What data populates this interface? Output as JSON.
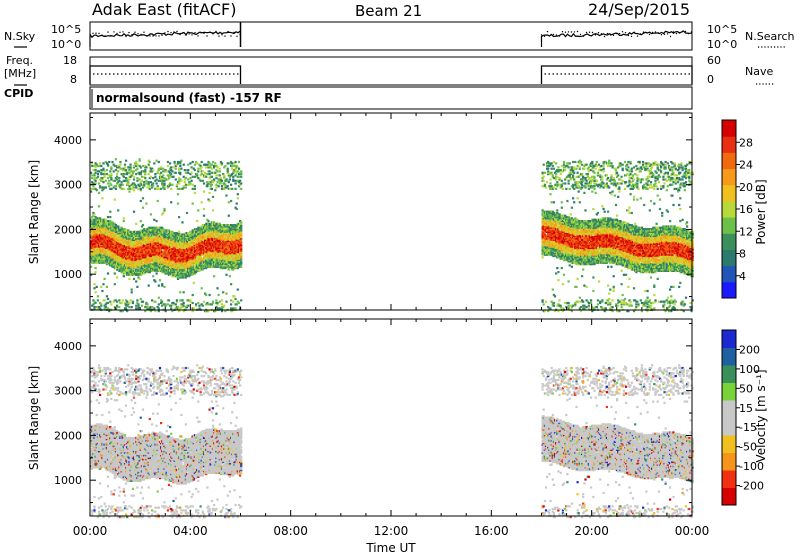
{
  "header": {
    "radar": "Adak East (fitACF)",
    "beam": "Beam 21",
    "date": "24/Sep/2015"
  },
  "labels": {
    "nsky": "N.Sky",
    "nsearch": "N.Search",
    "freq": "Freq.",
    "freq_unit": "[MHz]",
    "nave": "Nave",
    "cpid": "CPID",
    "cpid_text": "normalsound (fast) -157 RF",
    "xlabel": "Time UT"
  },
  "colors": {
    "power_scale": [
      "#1a1aff",
      "#2255b8",
      "#2c7a6e",
      "#3b8f5a",
      "#6cc04a",
      "#b8d93a",
      "#f0c020",
      "#f59a1a",
      "#f26a10",
      "#e83010",
      "#d60000"
    ],
    "velocity_scale": [
      "#d60000",
      "#f03010",
      "#f5961a",
      "#f0c020",
      "#c8c8c8",
      "#c8c8c8",
      "#7ad23a",
      "#3a8f5a",
      "#2060a0",
      "#1a2ad0"
    ]
  },
  "chart_data": [
    {
      "type": "line",
      "name": "noise",
      "ylabel_left": "N.Sky",
      "ylabel_right": "N.Search",
      "yticks_left": [
        "10^5",
        "10^0"
      ],
      "yticks_right": [
        "10^5",
        "10^0"
      ]
    },
    {
      "type": "line",
      "name": "freq-nave",
      "ylabel_left": "Freq. [MHz]",
      "ylabel_right": "Nave",
      "yticks_left": [
        "18",
        "8"
      ],
      "yticks_right": [
        "60",
        "0"
      ],
      "operating_intervals_hours": [
        [
          0,
          6
        ],
        [
          18,
          24
        ]
      ]
    },
    {
      "type": "heatmap",
      "name": "power",
      "ylabel": "Slant Range [km]",
      "yticks": [
        "4000",
        "3000",
        "2000",
        "1000"
      ],
      "ylim": [
        200,
        4600
      ],
      "colorbar_label": "Power [dB]",
      "colorbar_ticks": [
        "28",
        "24",
        "20",
        "16",
        "12",
        "8",
        "4"
      ],
      "crange": [
        0,
        30
      ]
    },
    {
      "type": "heatmap",
      "name": "velocity",
      "ylabel": "Slant Range [km]",
      "yticks": [
        "4000",
        "3000",
        "2000",
        "1000"
      ],
      "ylim": [
        200,
        4600
      ],
      "colorbar_label": "Velocity [m s⁻¹]",
      "colorbar_ticks": [
        "200",
        "100",
        "50",
        "15",
        "-15",
        "-50",
        "-100",
        "-200"
      ],
      "xticks": [
        "00:00",
        "04:00",
        "08:00",
        "12:00",
        "16:00",
        "20:00",
        "00:00"
      ],
      "xlim_hours": [
        0,
        24
      ]
    }
  ]
}
